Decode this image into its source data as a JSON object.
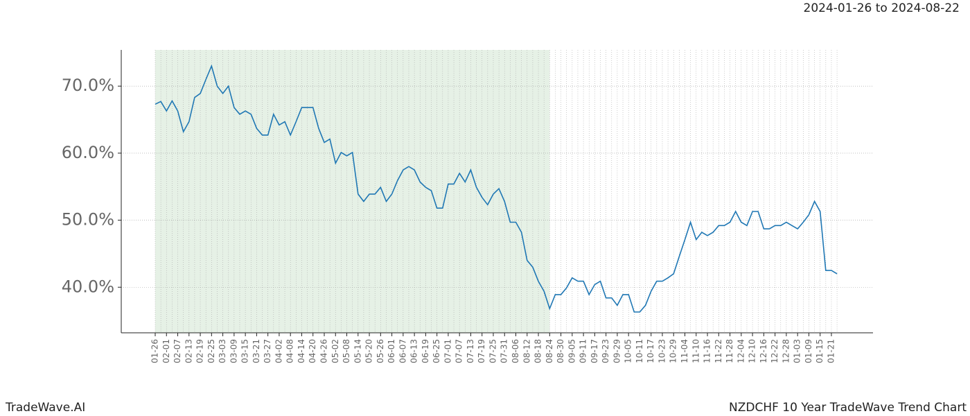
{
  "header": {
    "date_range": "2024-01-26 to 2024-08-22"
  },
  "footer": {
    "brand": "TradeWave.AI",
    "chart_name": "NZDCHF 10 Year TradeWave Trend Chart"
  },
  "chart_data": {
    "type": "line",
    "categories": [
      "01-26",
      null,
      "02-01",
      null,
      "02-07",
      null,
      "02-13",
      null,
      "02-19",
      null,
      "02-25",
      null,
      "03-03",
      null,
      "03-09",
      null,
      "03-15",
      null,
      "03-21",
      null,
      "03-27",
      null,
      "04-02",
      null,
      "04-08",
      null,
      "04-14",
      null,
      "04-20",
      null,
      "04-26",
      null,
      "05-02",
      null,
      "05-08",
      null,
      "05-14",
      null,
      "05-20",
      null,
      "05-26",
      null,
      "06-01",
      null,
      "06-07",
      null,
      "06-13",
      null,
      "06-19",
      null,
      "06-25",
      null,
      "07-01",
      null,
      "07-07",
      null,
      "07-13",
      null,
      "07-19",
      null,
      "07-25",
      null,
      "07-31",
      null,
      "08-06",
      null,
      "08-12",
      null,
      "08-18",
      null,
      "08-24",
      null,
      "08-30",
      null,
      "09-05",
      null,
      "09-11",
      null,
      "09-17",
      null,
      "09-23",
      null,
      "09-29",
      null,
      "10-05",
      null,
      "10-11",
      null,
      "10-17",
      null,
      "10-23",
      null,
      "10-29",
      null,
      "11-04",
      null,
      "11-10",
      null,
      "11-16",
      null,
      "11-22",
      null,
      "11-28",
      null,
      "12-04",
      null,
      "12-10",
      null,
      "12-16",
      null,
      "12-22",
      null,
      "12-28",
      null,
      "01-03",
      null,
      "01-09",
      null,
      "01-15",
      null,
      "01-21",
      null
    ],
    "values": [
      67.3,
      67.7,
      66.3,
      67.8,
      66.3,
      63.2,
      64.7,
      68.3,
      68.9,
      71,
      73,
      70,
      68.9,
      70,
      66.8,
      65.8,
      66.3,
      65.8,
      63.7,
      62.7,
      62.7,
      65.8,
      64.2,
      64.7,
      62.7,
      64.7,
      66.8,
      66.8,
      66.8,
      63.7,
      61.6,
      62.1,
      58.5,
      60.1,
      59.6,
      60.1,
      53.9,
      52.8,
      53.9,
      53.9,
      54.9,
      52.8,
      53.9,
      55.9,
      57.5,
      58.0,
      57.5,
      55.7,
      54.9,
      54.4,
      51.8,
      51.8,
      55.4,
      55.4,
      57.0,
      55.7,
      57.5,
      54.9,
      53.4,
      52.3,
      53.9,
      54.7,
      52.8,
      49.7,
      49.7,
      48.2,
      44.0,
      43.0,
      40.9,
      39.4,
      36.8,
      38.9,
      38.9,
      39.9,
      41.4,
      40.9,
      40.9,
      38.9,
      40.4,
      40.9,
      38.4,
      38.4,
      37.3,
      38.9,
      38.9,
      36.3,
      36.3,
      37.3,
      39.4,
      40.9,
      40.9,
      41.4,
      42.0,
      44.6,
      47.1,
      49.7,
      47.1,
      48.2,
      47.7,
      48.2,
      49.2,
      49.2,
      49.7,
      51.3,
      49.7,
      49.2,
      51.3,
      51.3,
      48.7,
      48.7,
      49.2,
      49.2,
      49.7,
      49.2,
      48.7,
      49.7,
      50.8,
      52.8,
      51.3,
      42.5,
      42.5,
      42.0
    ],
    "color": "#1f77b4",
    "ylim": [
      33.2,
      75.4
    ],
    "yticks": [
      {
        "value": 40,
        "label": "40.0%"
      },
      {
        "value": 50,
        "label": "50.0%"
      },
      {
        "value": 60,
        "label": "60.0%"
      },
      {
        "value": 70,
        "label": "70.0%"
      }
    ],
    "grid": true,
    "highlight_from": "01-26",
    "highlight_to": "08-24",
    "highlight_color": "#e6f1e6"
  }
}
